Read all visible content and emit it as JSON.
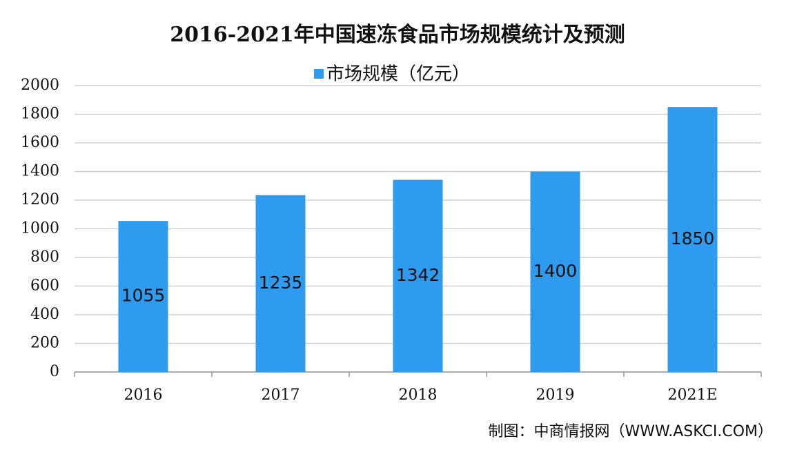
{
  "chart_data": {
    "type": "bar",
    "title": "2016-2021年中国速冻食品市场规模统计及预测",
    "categories": [
      "2016",
      "2017",
      "2018",
      "2019",
      "2021E"
    ],
    "series": [
      {
        "name": "市场规模（亿元）",
        "color": "#2e9bef",
        "values": [
          1055,
          1235,
          1342,
          1400,
          1850
        ]
      }
    ],
    "ylim": [
      0,
      2000
    ],
    "yticks": [
      0,
      200,
      400,
      600,
      800,
      1000,
      1200,
      1400,
      1600,
      1800,
      2000
    ],
    "grid": true,
    "source": "制图：中商情报网（WWW.ASKCI.COM）"
  }
}
